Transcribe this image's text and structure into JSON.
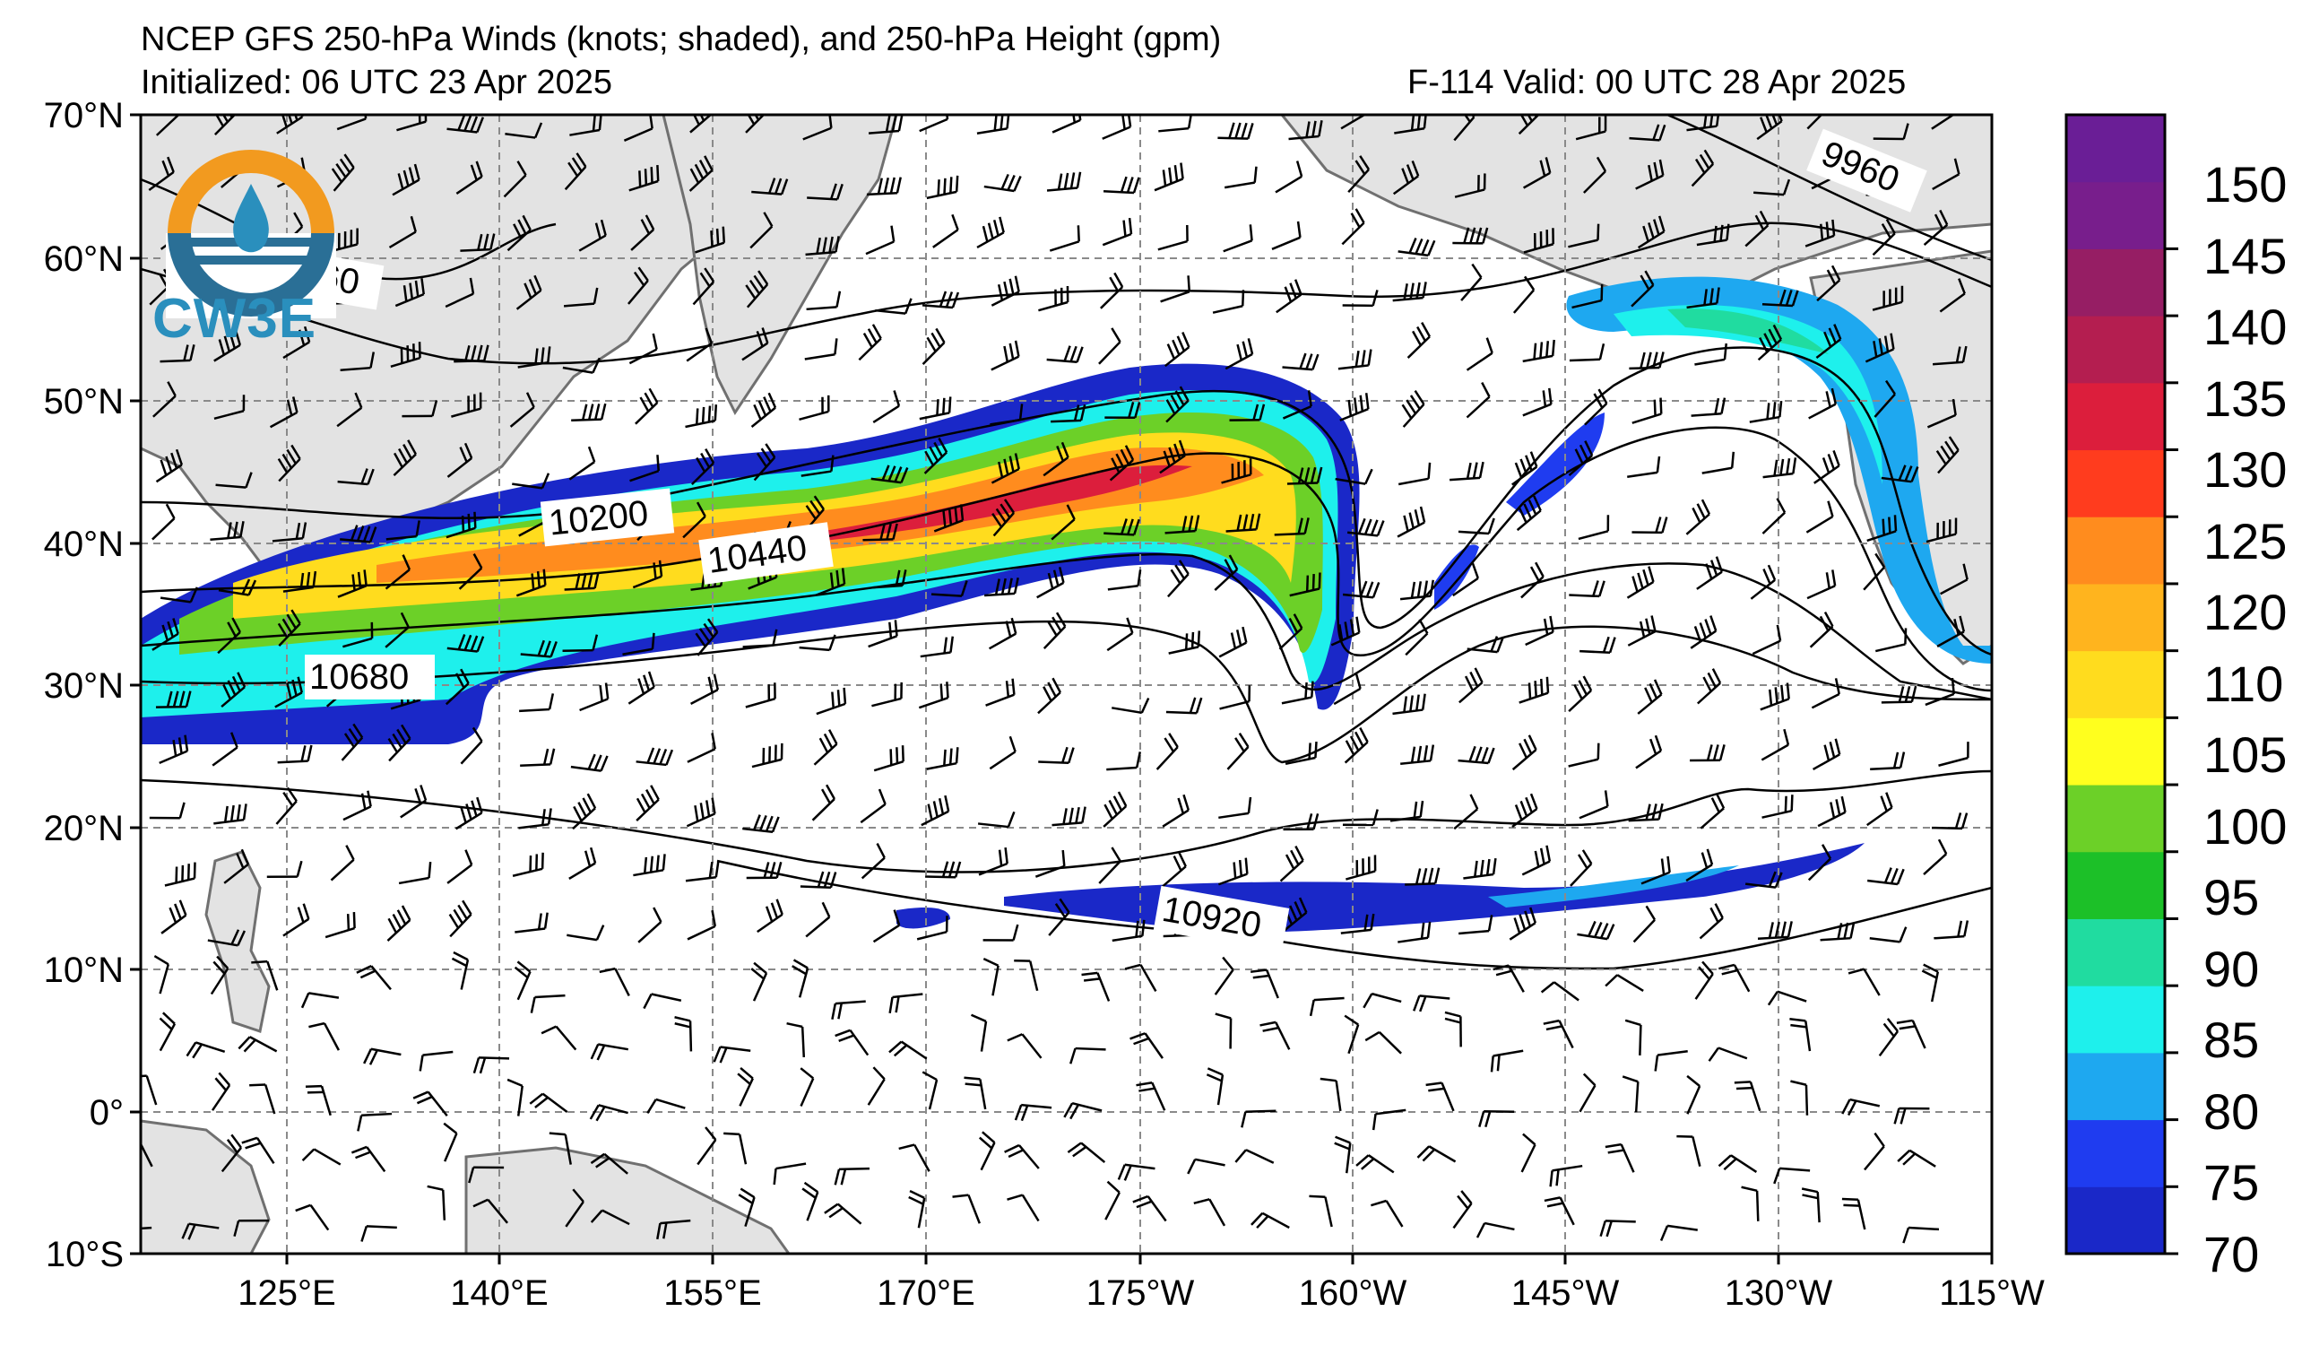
{
  "header": {
    "title": "NCEP GFS 250-hPa Winds (knots; shaded), and 250-hPa Height (gpm)",
    "initialized": "Initialized: 06 UTC 23 Apr 2025",
    "valid": "F-114  Valid: 00 UTC 28 Apr 2025"
  },
  "logo": {
    "text": "CW3E"
  },
  "axes": {
    "lat_labels": [
      "70°N",
      "60°N",
      "50°N",
      "40°N",
      "30°N",
      "20°N",
      "10°N",
      "0°",
      "10°S"
    ],
    "lon_labels": [
      "125°E",
      "140°E",
      "155°E",
      "170°E",
      "175°W",
      "160°W",
      "145°W",
      "130°W",
      "115°W"
    ]
  },
  "colorbar": {
    "labels": [
      "70",
      "75",
      "80",
      "85",
      "90",
      "95",
      "100",
      "105",
      "110",
      "120",
      "125",
      "130",
      "135",
      "140",
      "145",
      "150"
    ],
    "colors": [
      "#1a28c8",
      "#1f3cf0",
      "#1ea8f0",
      "#1ef0ec",
      "#20dca0",
      "#1cc028",
      "#6cd028",
      "#ffff1e",
      "#ffdc1e",
      "#ffb41e",
      "#ff8c1e",
      "#ff3c1e",
      "#dc1e3c",
      "#b41e50",
      "#961e64",
      "#781e8c",
      "#6a1e96"
    ]
  },
  "contours": {
    "labels": [
      "9960",
      "9960",
      "10200",
      "10440",
      "10680",
      "10920"
    ]
  },
  "map": {
    "land_color": "#e3e3e3",
    "grid": true
  }
}
